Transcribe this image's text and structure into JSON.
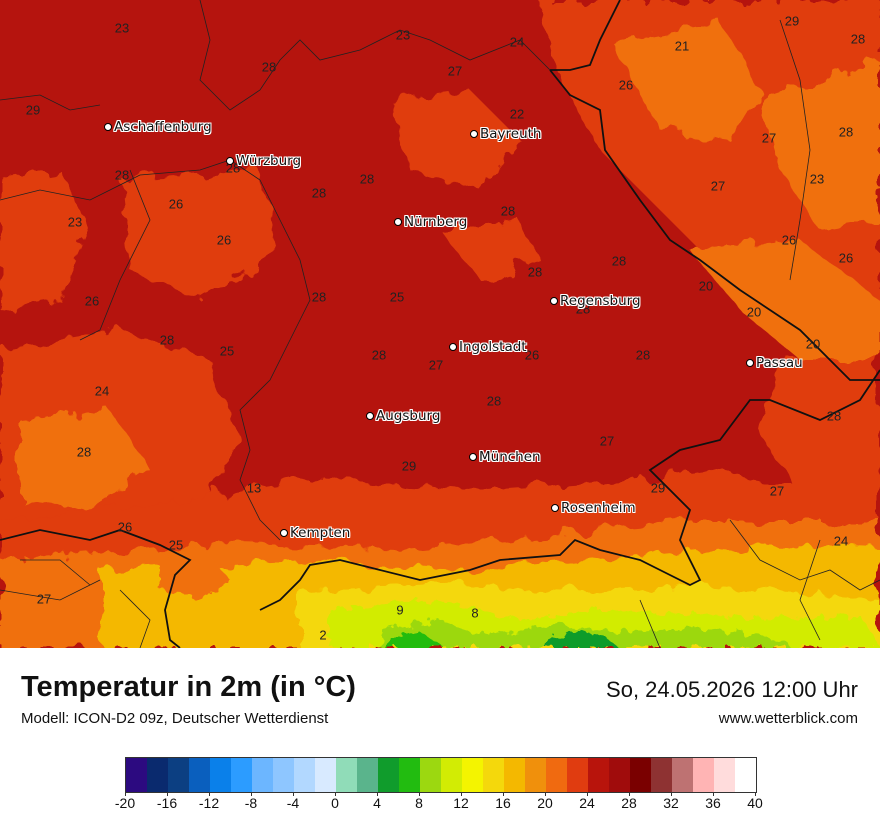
{
  "title": "Temperatur in 2m (in °C)",
  "model": "Modell: ICON-D2 09z, Deutscher Wetterdienst",
  "datetime": "So, 24.05.2026 12:00 Uhr",
  "website": "www.wetterblick.com",
  "colors": {
    "base": "#b5140e",
    "warm": "#e03c10",
    "orange": "#f07010",
    "cool": "#f4b800",
    "border": "#111111"
  },
  "cities": [
    {
      "name": "Aschaffenburg"
    },
    {
      "name": "Würzburg"
    },
    {
      "name": "Bayreuth"
    },
    {
      "name": "Nürnberg"
    },
    {
      "name": "Regensburg"
    },
    {
      "name": "Ingolstadt"
    },
    {
      "name": "Passau"
    },
    {
      "name": "Augsburg"
    },
    {
      "name": "München"
    },
    {
      "name": "Rosenheim"
    },
    {
      "name": "Kempten"
    }
  ],
  "values": [
    "23",
    "23",
    "24",
    "21",
    "29",
    "28",
    "28",
    "27",
    "26",
    "29",
    "28",
    "28",
    "22",
    "27",
    "28",
    "27",
    "28",
    "23",
    "26",
    "28",
    "23",
    "28",
    "26",
    "26",
    "26",
    "28",
    "20",
    "26",
    "28",
    "25",
    "28",
    "20",
    "28",
    "25",
    "28",
    "26",
    "28",
    "20",
    "28",
    "28",
    "27",
    "24",
    "28",
    "28",
    "27",
    "28",
    "29",
    "29",
    "13",
    "27",
    "26",
    "25",
    "24",
    "27",
    "9",
    "8",
    "2"
  ],
  "legend": {
    "ticks": [
      "-20",
      "-16",
      "-12",
      "-8",
      "-4",
      "0",
      "4",
      "8",
      "12",
      "16",
      "20",
      "24",
      "28",
      "32",
      "36",
      "40"
    ],
    "colors": [
      "#2c0a80",
      "#0a2a6e",
      "#0c3f82",
      "#0a5fbe",
      "#0a80ea",
      "#2c9cff",
      "#6cb6ff",
      "#8ec6ff",
      "#b2d8ff",
      "#d8eaff",
      "#90dcb8",
      "#5ab48c",
      "#109c2c",
      "#22bc10",
      "#9cd810",
      "#d2ec04",
      "#f4f400",
      "#f4d80c",
      "#f4b800",
      "#f0900c",
      "#f06a10",
      "#e03c10",
      "#b8140c",
      "#a00c0c",
      "#7a0000",
      "#8e3232",
      "#be7272",
      "#ffb4b4",
      "#ffdcdc",
      "#ffffff"
    ]
  }
}
